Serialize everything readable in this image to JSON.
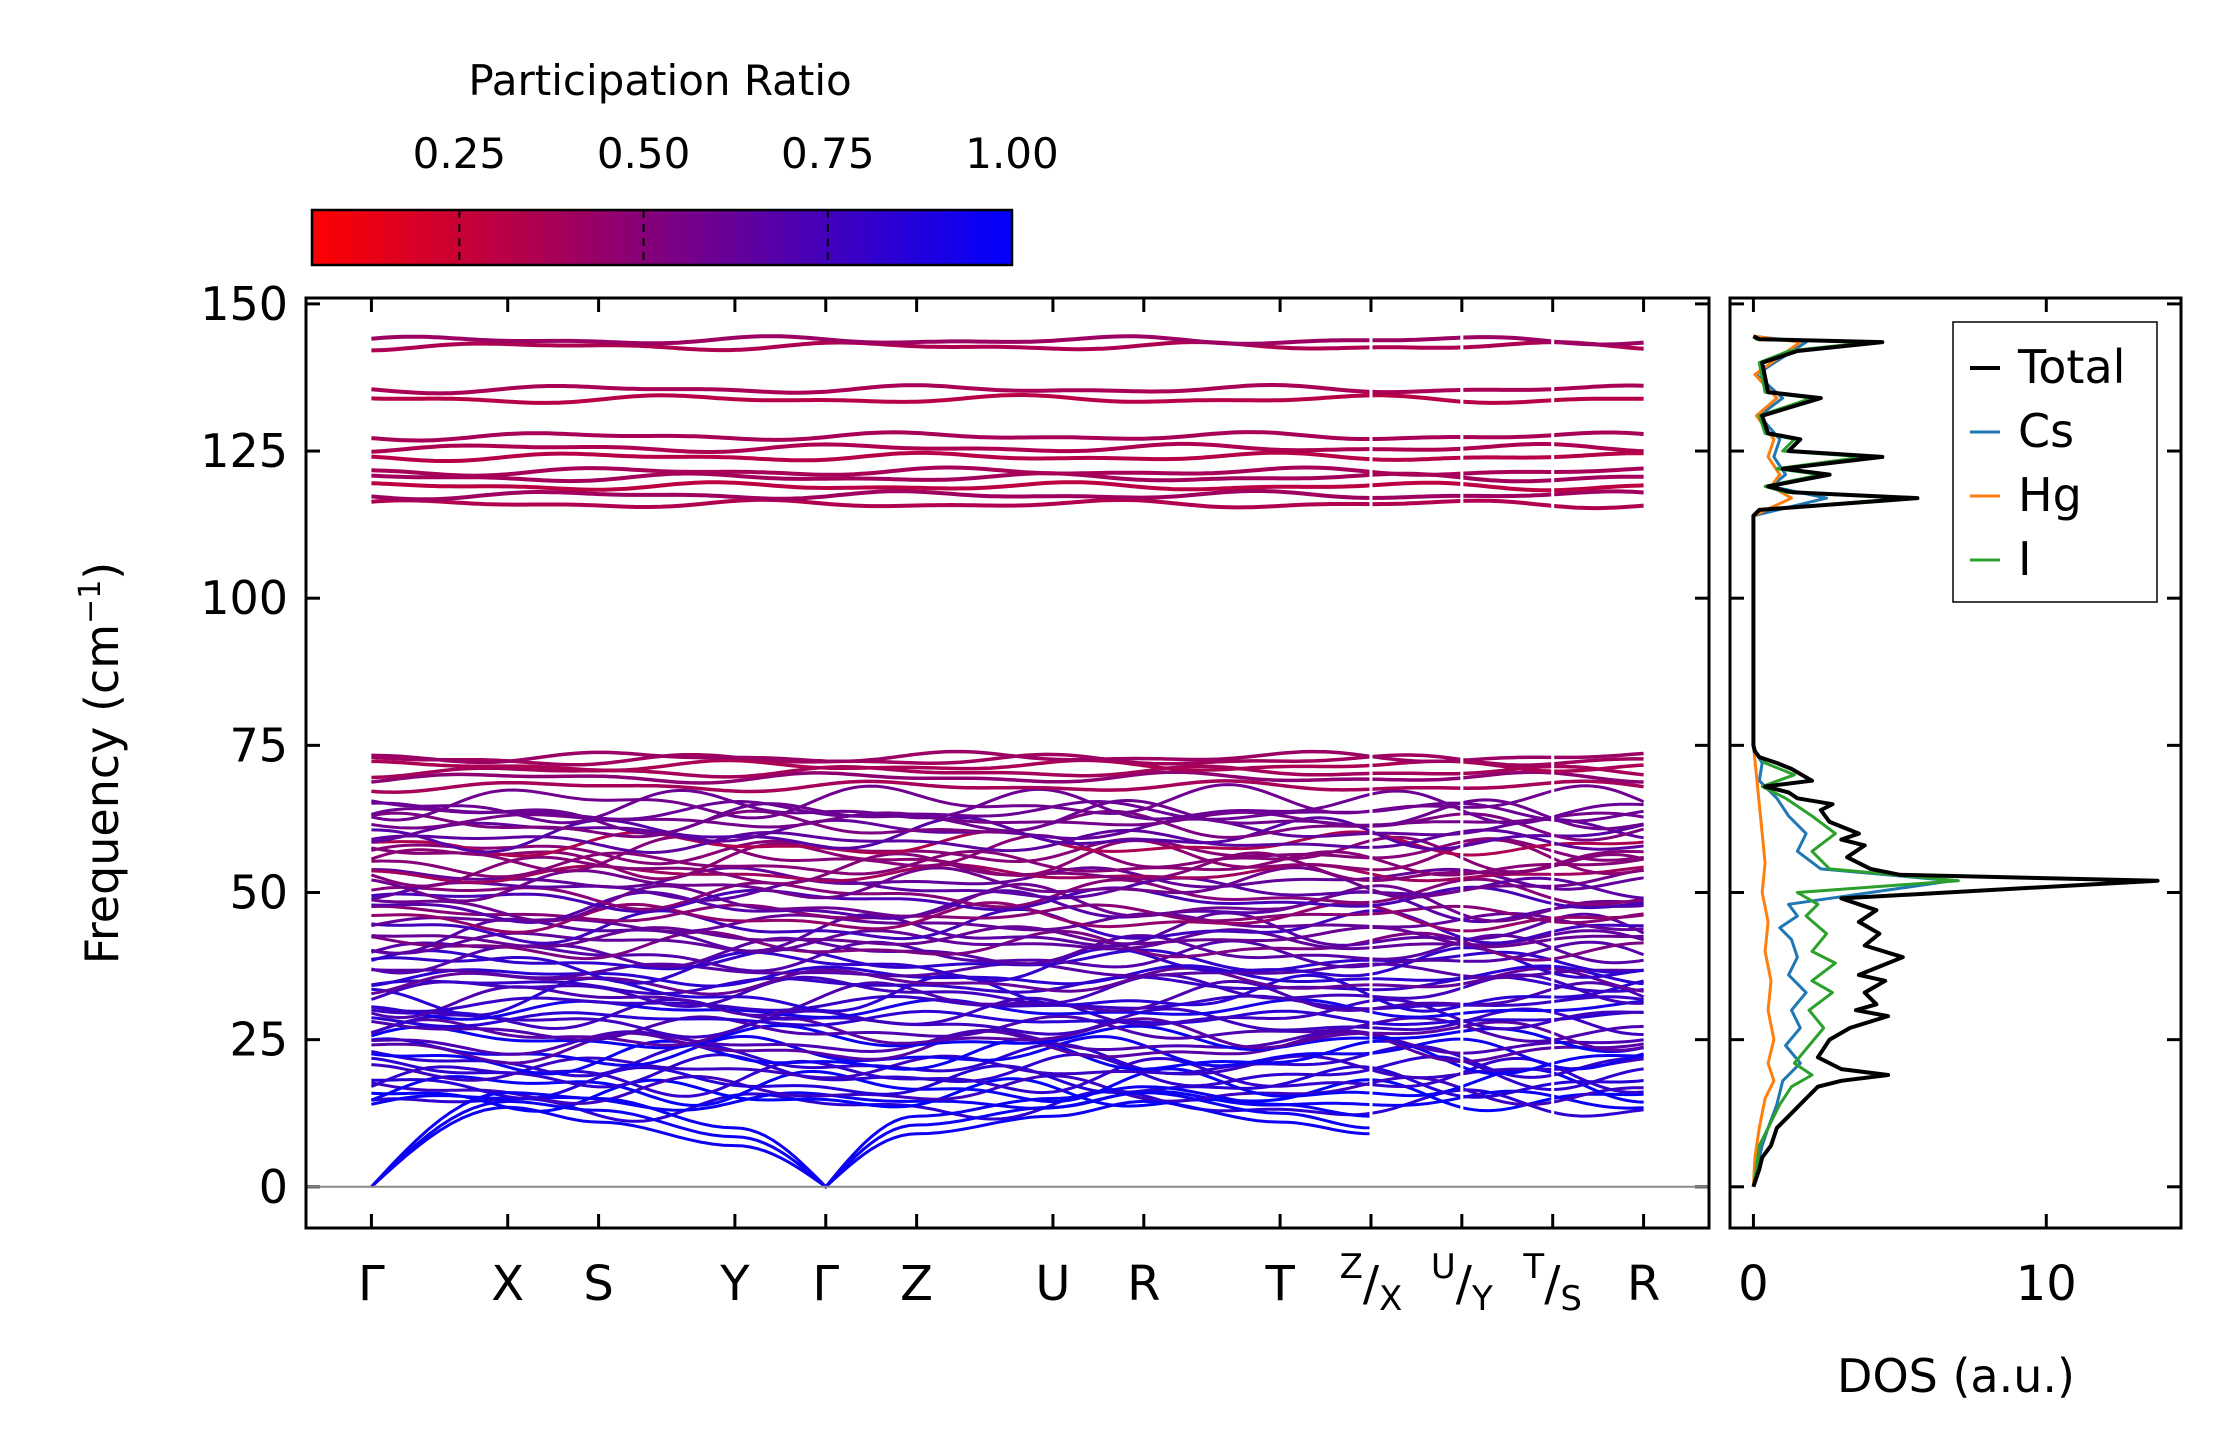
{
  "colorbar": {
    "title": "Participation Ratio",
    "ticks": [
      0.25,
      0.5,
      0.75,
      1.0
    ],
    "tick_labels": [
      "0.25",
      "0.50",
      "0.75",
      "1.00"
    ],
    "range": [
      0.05,
      1.0
    ],
    "color_low": "#ff0000",
    "color_high": "#0000ff"
  },
  "chart_data": [
    {
      "type": "line",
      "name": "phonon-band-structure",
      "ylabel": "Frequency (cm",
      "ylabel_sup": "−1",
      "ylabel_close": ")",
      "ylim": [
        -7,
        151
      ],
      "yticks": [
        0,
        25,
        50,
        75,
        100,
        125,
        150
      ],
      "ytick_labels": [
        "0",
        "25",
        "50",
        "75",
        "100",
        "125",
        "150"
      ],
      "xlim": [
        -0.72,
        14.72
      ],
      "kpoints": [
        {
          "label": "Γ",
          "x": 0
        },
        {
          "label": "X",
          "x": 1.5
        },
        {
          "label": "S",
          "x": 2.5
        },
        {
          "label": "Y",
          "x": 4
        },
        {
          "label": "Γ",
          "x": 5
        },
        {
          "label": "Z",
          "x": 6
        },
        {
          "label": "U",
          "x": 7.5
        },
        {
          "label": "R",
          "x": 8.5
        },
        {
          "label": "T",
          "x": 10
        },
        {
          "label": "Z",
          "sub": "X",
          "x": 11
        },
        {
          "label": "U",
          "sub": "Y",
          "x": 12
        },
        {
          "label": "T",
          "sub": "S",
          "x": 13
        },
        {
          "label": "R",
          "x": 14
        }
      ],
      "segments": [
        [
          0,
          11
        ],
        [
          11,
          12
        ],
        [
          12,
          13
        ],
        [
          13,
          14
        ]
      ],
      "acoustic_bands": [
        {
          "x": [
            0,
            1.5,
            2.5,
            4,
            5,
            6,
            7.5,
            8.5,
            10,
            11
          ],
          "y": [
            0,
            13.5,
            11,
            7,
            0,
            9,
            12,
            14.5,
            11,
            9
          ]
        },
        {
          "x": [
            0,
            1.5,
            2.5,
            4,
            5,
            6,
            7.5,
            8.5,
            10,
            11
          ],
          "y": [
            0,
            14.5,
            13,
            8.5,
            0,
            10.5,
            13.5,
            16,
            12.5,
            10
          ]
        },
        {
          "x": [
            0,
            1.5,
            2.5,
            4,
            5,
            6,
            7.5,
            8.5,
            10,
            11
          ],
          "y": [
            0,
            16,
            15,
            10,
            0,
            12,
            15,
            17,
            14,
            12
          ]
        }
      ],
      "optical_bands_high": [
        116,
        117.5,
        119,
        120.5,
        121.5,
        124,
        125.5,
        127.5,
        133.8,
        135.5,
        142.8,
        143.8
      ],
      "optical_bands_mid": [
        68,
        69.5,
        70.5,
        71.5,
        72.5,
        73
      ],
      "optical_band_range": [
        13.5,
        66
      ],
      "optical_band_count": 64,
      "baseline": 0
    },
    {
      "type": "line",
      "name": "density-of-states",
      "xlabel": "DOS (a.u.)",
      "xlim": [
        -0.8,
        14.6
      ],
      "xticks": [
        0,
        10
      ],
      "xtick_labels": [
        "0",
        "10"
      ],
      "ylim": [
        -7,
        151
      ],
      "legend_position": "top-right",
      "legend": [
        "Total",
        "Cs",
        "Hg",
        "I"
      ],
      "series": [
        {
          "name": "Total",
          "color": "#000000",
          "points": [
            [
              0,
              0
            ],
            [
              0.2,
              3
            ],
            [
              0.3,
              5
            ],
            [
              0.6,
              7
            ],
            [
              0.8,
              10
            ],
            [
              1.2,
              12
            ],
            [
              1.8,
              15
            ],
            [
              2.2,
              17
            ],
            [
              3,
              18
            ],
            [
              4.6,
              19
            ],
            [
              3,
              20
            ],
            [
              2.2,
              22
            ],
            [
              2.6,
              25
            ],
            [
              3.3,
              27
            ],
            [
              4.6,
              29
            ],
            [
              3.5,
              30
            ],
            [
              4.2,
              31
            ],
            [
              3.8,
              33
            ],
            [
              4.5,
              35
            ],
            [
              3.6,
              36
            ],
            [
              5.1,
              39
            ],
            [
              3.8,
              41
            ],
            [
              4.3,
              43
            ],
            [
              3.6,
              45
            ],
            [
              4.2,
              47
            ],
            [
              3,
              49
            ],
            [
              13.8,
              52
            ],
            [
              5,
              53
            ],
            [
              4,
              54
            ],
            [
              3.2,
              56
            ],
            [
              3.8,
              58
            ],
            [
              3,
              59
            ],
            [
              3.6,
              60
            ],
            [
              2.6,
              62
            ],
            [
              2.3,
              64
            ],
            [
              2.7,
              65
            ],
            [
              1.5,
              66
            ],
            [
              1.2,
              67
            ],
            [
              0.4,
              68
            ],
            [
              2,
              69
            ],
            [
              1.3,
              71
            ],
            [
              0.8,
              72
            ],
            [
              0.2,
              73
            ],
            [
              0.05,
              74
            ],
            [
              0,
              75
            ],
            [
              0,
              114
            ],
            [
              0.2,
              115
            ],
            [
              5.6,
              117
            ],
            [
              1.3,
              118
            ],
            [
              0.5,
              119
            ],
            [
              2.6,
              121
            ],
            [
              1,
              122
            ],
            [
              4.4,
              124
            ],
            [
              1.2,
              125
            ],
            [
              1.6,
              127
            ],
            [
              0.5,
              128
            ],
            [
              0.3,
              131
            ],
            [
              2.3,
              134
            ],
            [
              0.5,
              135
            ],
            [
              0.3,
              140
            ],
            [
              1.5,
              142
            ],
            [
              4.4,
              143.5
            ],
            [
              0.2,
              144
            ],
            [
              0,
              144.5
            ]
          ]
        },
        {
          "name": "Cs",
          "color": "#1f77b4",
          "points": [
            [
              0,
              0
            ],
            [
              0.1,
              3
            ],
            [
              0.3,
              7
            ],
            [
              0.5,
              10
            ],
            [
              0.8,
              14
            ],
            [
              1,
              18
            ],
            [
              1.6,
              21
            ],
            [
              1.1,
              24
            ],
            [
              1.6,
              27
            ],
            [
              1.3,
              30
            ],
            [
              1.8,
              33
            ],
            [
              1.2,
              36
            ],
            [
              1.5,
              39
            ],
            [
              1.3,
              42
            ],
            [
              0.9,
              44
            ],
            [
              1.5,
              46
            ],
            [
              1.2,
              48
            ],
            [
              6.8,
              52
            ],
            [
              2.3,
              54
            ],
            [
              1.5,
              57
            ],
            [
              1.8,
              60
            ],
            [
              1.2,
              63
            ],
            [
              0.8,
              66
            ],
            [
              0.2,
              69
            ],
            [
              0.3,
              72
            ],
            [
              0.05,
              74
            ],
            [
              0,
              75
            ],
            [
              0,
              114
            ],
            [
              2.5,
              117
            ],
            [
              0.6,
              119
            ],
            [
              1.1,
              121
            ],
            [
              0.7,
              124
            ],
            [
              0.9,
              127
            ],
            [
              0.2,
              131
            ],
            [
              1,
              134
            ],
            [
              0.1,
              138
            ],
            [
              1.8,
              143.5
            ],
            [
              0,
              144.5
            ]
          ]
        },
        {
          "name": "Hg",
          "color": "#ff7f0e",
          "points": [
            [
              0,
              0
            ],
            [
              0.05,
              5
            ],
            [
              0.2,
              10
            ],
            [
              0.4,
              15
            ],
            [
              0.7,
              18
            ],
            [
              0.5,
              21
            ],
            [
              0.7,
              25
            ],
            [
              0.5,
              30
            ],
            [
              0.6,
              35
            ],
            [
              0.4,
              40
            ],
            [
              0.5,
              45
            ],
            [
              0.3,
              50
            ],
            [
              0.4,
              55
            ],
            [
              0.3,
              60
            ],
            [
              0.2,
              65
            ],
            [
              0.1,
              70
            ],
            [
              0,
              75
            ],
            [
              0,
              114
            ],
            [
              1.3,
              117
            ],
            [
              0.6,
              119
            ],
            [
              0.9,
              121
            ],
            [
              0.5,
              124
            ],
            [
              0.7,
              127
            ],
            [
              0.1,
              131
            ],
            [
              0.8,
              134
            ],
            [
              0.05,
              138
            ],
            [
              1.6,
              143.5
            ],
            [
              0,
              144.5
            ]
          ]
        },
        {
          "name": "I",
          "color": "#2ca02c",
          "points": [
            [
              0,
              0
            ],
            [
              0.1,
              3
            ],
            [
              0.2,
              7
            ],
            [
              0.5,
              10
            ],
            [
              0.9,
              14
            ],
            [
              1.3,
              17
            ],
            [
              2,
              19
            ],
            [
              1.4,
              21
            ],
            [
              1.9,
              24
            ],
            [
              2.4,
              27
            ],
            [
              1.9,
              30
            ],
            [
              2.7,
              33
            ],
            [
              2,
              35
            ],
            [
              2.8,
              38
            ],
            [
              2,
              40
            ],
            [
              2.5,
              43
            ],
            [
              1.8,
              46
            ],
            [
              2.2,
              48
            ],
            [
              1.5,
              50
            ],
            [
              7,
              52
            ],
            [
              2.6,
              54
            ],
            [
              2,
              57
            ],
            [
              2.8,
              60
            ],
            [
              2,
              63
            ],
            [
              1.1,
              66
            ],
            [
              0.3,
              68
            ],
            [
              1.4,
              70
            ],
            [
              0.4,
              72
            ],
            [
              0.05,
              74
            ],
            [
              0,
              75
            ],
            [
              0,
              114
            ],
            [
              0.2,
              115
            ],
            [
              5.2,
              117
            ],
            [
              1.1,
              118
            ],
            [
              0.4,
              119
            ],
            [
              2.3,
              121
            ],
            [
              0.8,
              122
            ],
            [
              3.8,
              124
            ],
            [
              1,
              125
            ],
            [
              1.4,
              127
            ],
            [
              0.4,
              128
            ],
            [
              0.2,
              131
            ],
            [
              2,
              134
            ],
            [
              0.4,
              135
            ],
            [
              0.2,
              140
            ],
            [
              1.2,
              142
            ],
            [
              4,
              143.5
            ],
            [
              0.1,
              144
            ],
            [
              0,
              144.5
            ]
          ]
        }
      ]
    }
  ]
}
